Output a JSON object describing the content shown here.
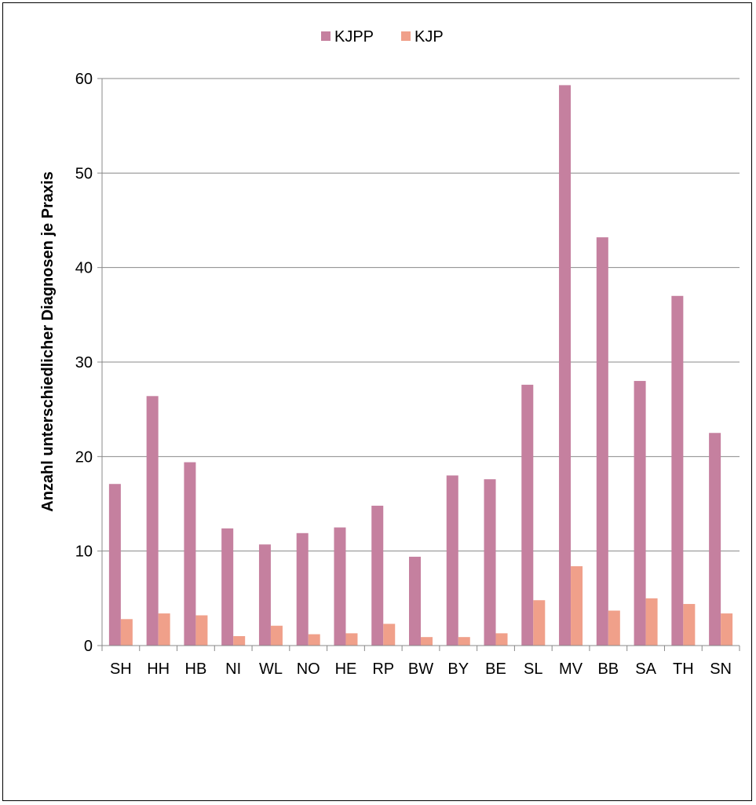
{
  "chart_data": {
    "type": "bar",
    "title": "",
    "xlabel": "",
    "ylabel": "Anzahl unterschiedlicher Diagnosen je Praxis",
    "ylim": [
      0,
      60
    ],
    "yticks": [
      0,
      10,
      20,
      30,
      40,
      50,
      60
    ],
    "grid": true,
    "legend_position": "top-center",
    "categories": [
      "SH",
      "HH",
      "HB",
      "NI",
      "WL",
      "NO",
      "HE",
      "RP",
      "BW",
      "BY",
      "BE",
      "SL",
      "MV",
      "BB",
      "SA",
      "TH",
      "SN"
    ],
    "series": [
      {
        "name": "KJPP",
        "color": "#C5809F",
        "values": [
          17.1,
          26.4,
          19.4,
          12.4,
          10.7,
          11.9,
          12.5,
          14.8,
          9.4,
          18.0,
          17.6,
          27.6,
          59.3,
          43.2,
          28.0,
          37.0,
          22.5
        ]
      },
      {
        "name": "KJP",
        "color": "#F0A08A",
        "values": [
          2.8,
          3.4,
          3.2,
          1.0,
          2.1,
          1.2,
          1.3,
          2.3,
          0.9,
          0.9,
          1.3,
          4.8,
          8.4,
          3.7,
          5.0,
          4.4,
          3.4
        ]
      }
    ]
  }
}
